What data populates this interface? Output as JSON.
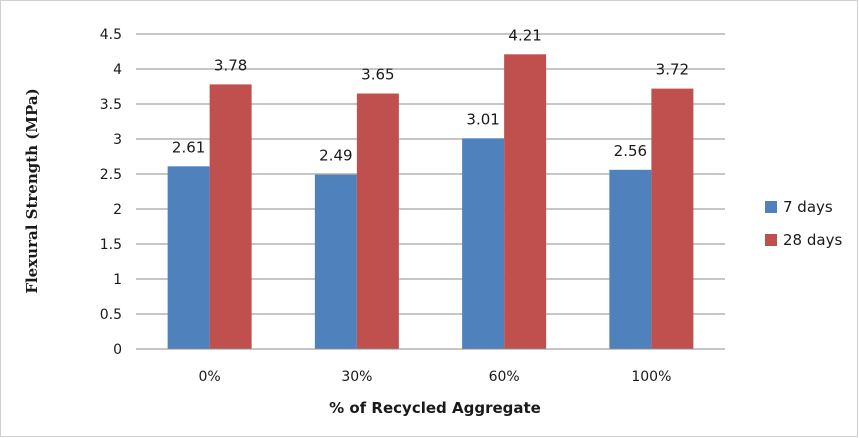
{
  "chart_data": {
    "type": "bar",
    "title": "",
    "xlabel": "% of Recycled  Aggregate",
    "ylabel": "Flexural Strength (MPa)",
    "categories": [
      "0%",
      "30%",
      "60%",
      "100%"
    ],
    "ylim": [
      0,
      4.5
    ],
    "yticks": [
      0,
      0.5,
      1,
      1.5,
      2,
      2.5,
      3,
      3.5,
      4,
      4.5
    ],
    "ytick_labels": [
      "0",
      "0.5",
      "1",
      "1.5",
      "2",
      "2.5",
      "3",
      "3.5",
      "4",
      "4.5"
    ],
    "grid": true,
    "legend_position": "right",
    "series": [
      {
        "name": "7 days",
        "color": "#4f81bd",
        "values": [
          2.61,
          2.49,
          3.01,
          2.56
        ],
        "labels": [
          "2.61",
          "2.49",
          "3.01",
          "2.56"
        ]
      },
      {
        "name": "28 days",
        "color": "#c0504d",
        "values": [
          3.78,
          3.65,
          4.21,
          3.72
        ],
        "labels": [
          "3.78",
          "3.65",
          "4.21",
          "3.72"
        ]
      }
    ]
  }
}
